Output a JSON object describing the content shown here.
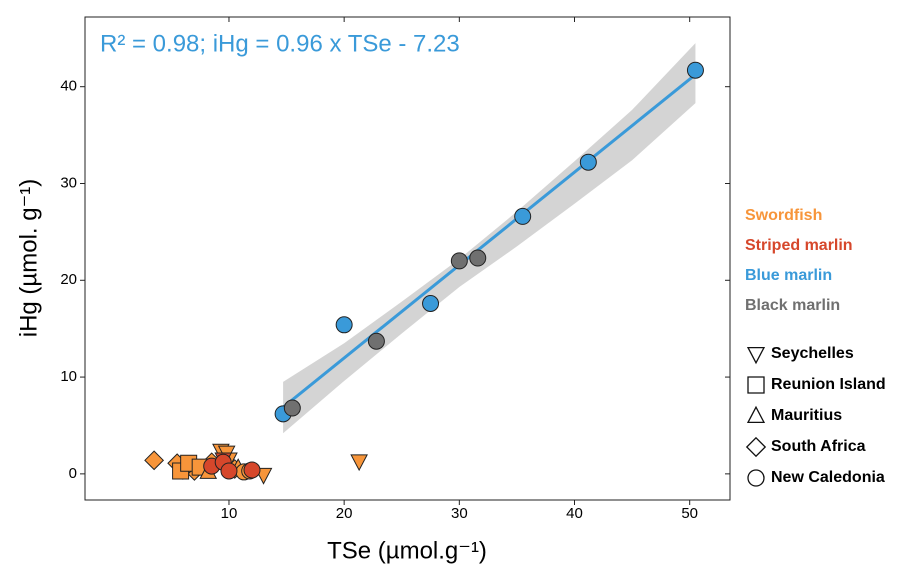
{
  "chart_data": {
    "type": "scatter",
    "annotation": "R² = 0.98; iHg = 0.96 x TSe - 7.23",
    "xlabel": "TSe (µmol.g⁻¹)",
    "ylabel": "iHg (µmol. g⁻¹)",
    "xlim": [
      -2.5,
      53.5
    ],
    "ylim": [
      -2.7,
      47.2
    ],
    "xticks": [
      10,
      20,
      30,
      40,
      50
    ],
    "yticks": [
      0,
      10,
      20,
      30,
      40
    ],
    "grid": false,
    "series": [
      {
        "name": "Swordfish",
        "color": "#f7953a",
        "x": [
          21.3,
          13,
          9.3,
          9.8,
          10,
          3.5,
          5.5,
          6.5,
          7,
          8,
          8.5,
          10.5,
          6,
          5.8,
          6.5,
          7.5,
          8.2,
          10.8,
          11.3,
          11.8
        ],
        "values": [
          1.3,
          -0.1,
          2.4,
          2.2,
          1.5,
          1.4,
          1.1,
          0.8,
          0.3,
          0.6,
          1.2,
          0.5,
          0.4,
          0.3,
          1.1,
          0.7,
          0.2,
          0.6,
          0.2,
          0.3
        ],
        "markers": [
          "triangle-down",
          "triangle-down",
          "triangle-down",
          "triangle-down",
          "triangle-down",
          "diamond",
          "diamond",
          "diamond",
          "diamond",
          "diamond",
          "diamond",
          "diamond",
          "diamond",
          "square",
          "square",
          "square",
          "triangle-up",
          "triangle-up",
          "circle",
          "circle"
        ]
      },
      {
        "name": "Striped marlin",
        "color": "#d6472b",
        "x": [
          9.5,
          8.5,
          9.5,
          10,
          12
        ],
        "values": [
          1.5,
          0.8,
          1.2,
          0.3,
          0.4
        ],
        "markers": [
          "triangle-down",
          "circle",
          "circle",
          "circle",
          "circle"
        ]
      },
      {
        "name": "Blue marlin",
        "color": "#3a9ad9",
        "x": [
          14.7,
          20,
          27.5,
          35.5,
          41.2,
          50.5
        ],
        "values": [
          6.2,
          15.4,
          17.6,
          26.6,
          32.2,
          41.7
        ],
        "markers": [
          "circle",
          "circle",
          "circle",
          "circle",
          "circle",
          "circle"
        ]
      },
      {
        "name": "Black marlin",
        "color": "#707070",
        "x": [
          15.5,
          22.8,
          30,
          31.6
        ],
        "values": [
          6.8,
          13.7,
          22,
          22.3
        ],
        "markers": [
          "circle",
          "circle",
          "circle",
          "circle"
        ]
      }
    ],
    "shape_legend": [
      {
        "name": "Seychelles",
        "marker": "triangle-down"
      },
      {
        "name": "Reunion Island",
        "marker": "square"
      },
      {
        "name": "Mauritius",
        "marker": "triangle-up"
      },
      {
        "name": "South Africa",
        "marker": "diamond"
      },
      {
        "name": "New Caledonia",
        "marker": "circle"
      }
    ],
    "fit": {
      "color": "#3a9ad9",
      "band_color": "#cccccc",
      "x": [
        14.7,
        50.5
      ],
      "y": [
        6.88,
        41.25
      ],
      "band_x": [
        14.7,
        20,
        25,
        30,
        35,
        40,
        45,
        50.5
      ],
      "band_upper": [
        9.5,
        13.5,
        17.8,
        22.2,
        27.1,
        32.3,
        37.6,
        44.5
      ],
      "band_lower": [
        4.2,
        9.6,
        14.5,
        19.3,
        23.5,
        27.9,
        32.4,
        38.3
      ]
    }
  }
}
